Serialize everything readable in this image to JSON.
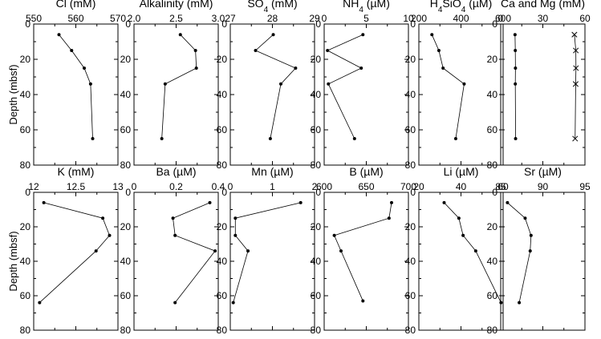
{
  "chart_data": [
    {
      "type": "line",
      "title": "Cl (mM)",
      "xlim": [
        550,
        570
      ],
      "xticks": [
        "550",
        "560",
        "570"
      ],
      "ylim": [
        0,
        80
      ],
      "yticks": [
        "0",
        "20",
        "40",
        "60",
        "80"
      ],
      "ylabel": "Depth (mbsf)",
      "series": [
        {
          "x": [
            556,
            559,
            562,
            563.5,
            564
          ],
          "y": [
            6,
            15,
            25,
            34,
            65
          ]
        }
      ]
    },
    {
      "type": "line",
      "title": "Alkalinity (mM)",
      "xlim": [
        2.0,
        3.0
      ],
      "xticks": [
        "2.0",
        "2.5",
        "3.0"
      ],
      "ylim": [
        0,
        80
      ],
      "yticks": [
        "0",
        "20",
        "40",
        "60",
        "80"
      ],
      "series": [
        {
          "x": [
            2.55,
            2.73,
            2.74,
            2.37,
            2.33
          ],
          "y": [
            6,
            15,
            25,
            34,
            65
          ]
        }
      ]
    },
    {
      "type": "line",
      "title": "SO4 (mM)",
      "xlim": [
        27,
        29
      ],
      "xticks": [
        "27",
        "28",
        "29"
      ],
      "ylim": [
        0,
        80
      ],
      "yticks": [
        "0",
        "20",
        "40",
        "60",
        "80"
      ],
      "series": [
        {
          "x": [
            28.02,
            27.6,
            28.55,
            28.2,
            27.95
          ],
          "y": [
            6,
            15,
            25,
            34,
            65
          ]
        }
      ]
    },
    {
      "type": "line",
      "title": "NH4 (µM)",
      "xlim": [
        0,
        10
      ],
      "xticks": [
        "0",
        "5",
        "10"
      ],
      "ylim": [
        0,
        80
      ],
      "yticks": [
        "0",
        "20",
        "40",
        "60",
        "80"
      ],
      "series": [
        {
          "x": [
            4.6,
            0.4,
            4.4,
            0.5,
            3.6
          ],
          "y": [
            6,
            15,
            25,
            34,
            65
          ]
        }
      ]
    },
    {
      "type": "line",
      "title": "H4SiO4 (µM)",
      "xlim": [
        200,
        600
      ],
      "xticks": [
        "200",
        "400",
        "600"
      ],
      "ylim": [
        0,
        80
      ],
      "yticks": [
        "0",
        "20",
        "40",
        "60",
        "80"
      ],
      "series": [
        {
          "x": [
            262,
            295,
            315,
            415,
            375
          ],
          "y": [
            6,
            15,
            25,
            34,
            65
          ]
        }
      ]
    },
    {
      "type": "line",
      "title": "Ca and Mg (mM)",
      "xlim": [
        0,
        60
      ],
      "xticks": [
        "0",
        "30",
        "60"
      ],
      "ylim": [
        0,
        80
      ],
      "yticks": [
        "0",
        "20",
        "40",
        "60",
        "80"
      ],
      "series": [
        {
          "marker": "dot",
          "x": [
            10.2,
            10.4,
            10.5,
            10.4,
            10.6
          ],
          "y": [
            6,
            15,
            25,
            34,
            65
          ]
        },
        {
          "marker": "x",
          "x": [
            52.5,
            53.5,
            53.6,
            53.4,
            53.0
          ],
          "y": [
            6,
            15,
            25,
            34,
            65
          ]
        }
      ]
    },
    {
      "type": "line",
      "title": "K (mM)",
      "xlim": [
        12,
        13
      ],
      "xticks": [
        "12",
        "12.5",
        "13"
      ],
      "ylim": [
        0,
        80
      ],
      "yticks": [
        "0",
        "20",
        "40",
        "60",
        "80"
      ],
      "ylabel": "Depth (mbsf)",
      "series": [
        {
          "x": [
            12.12,
            12.82,
            12.9,
            12.74,
            12.07
          ],
          "y": [
            6,
            15,
            25,
            34,
            64
          ]
        }
      ]
    },
    {
      "type": "line",
      "title": "Ba (µM)",
      "xlim": [
        0,
        0.4
      ],
      "xticks": [
        "0",
        "0.2",
        "0.4"
      ],
      "ylim": [
        0,
        80
      ],
      "yticks": [
        "0",
        "20",
        "40",
        "60",
        "80"
      ],
      "series": [
        {
          "x": [
            0.36,
            0.185,
            0.195,
            0.385,
            0.195
          ],
          "y": [
            6,
            15,
            25,
            34,
            64
          ]
        }
      ]
    },
    {
      "type": "line",
      "title": "Mn (µM)",
      "xlim": [
        0,
        2
      ],
      "xticks": [
        "0",
        "1",
        "2"
      ],
      "ylim": [
        0,
        80
      ],
      "yticks": [
        "0",
        "20",
        "40",
        "60",
        "80"
      ],
      "series": [
        {
          "x": [
            1.67,
            0.12,
            0.12,
            0.42,
            0.07
          ],
          "y": [
            6,
            15,
            25,
            34,
            64
          ]
        }
      ]
    },
    {
      "type": "line",
      "title": "B (µM)",
      "xlim": [
        600,
        700
      ],
      "xticks": [
        "600",
        "650",
        "700"
      ],
      "ylim": [
        0,
        80
      ],
      "yticks": [
        "0",
        "20",
        "40",
        "60",
        "80"
      ],
      "series": [
        {
          "x": [
            680,
            677,
            612,
            620,
            646
          ],
          "y": [
            6,
            15,
            25,
            34,
            63
          ]
        }
      ]
    },
    {
      "type": "line",
      "title": "Li (µM)",
      "xlim": [
        20,
        60
      ],
      "xticks": [
        "20",
        "40",
        "60"
      ],
      "ylim": [
        0,
        80
      ],
      "yticks": [
        "0",
        "20",
        "40",
        "60",
        "80"
      ],
      "series": [
        {
          "x": [
            32,
            39,
            41,
            47,
            59
          ],
          "y": [
            6,
            15,
            25,
            34,
            64
          ]
        }
      ]
    },
    {
      "type": "line",
      "title": "Sr (µM)",
      "xlim": [
        85,
        95
      ],
      "xticks": [
        "85",
        "90",
        "95"
      ],
      "ylim": [
        0,
        80
      ],
      "yticks": [
        "0",
        "20",
        "40",
        "60",
        "80"
      ],
      "series": [
        {
          "x": [
            85.8,
            87.9,
            88.6,
            88.5,
            87.2
          ],
          "y": [
            6,
            15,
            25,
            34,
            64
          ]
        }
      ]
    }
  ]
}
